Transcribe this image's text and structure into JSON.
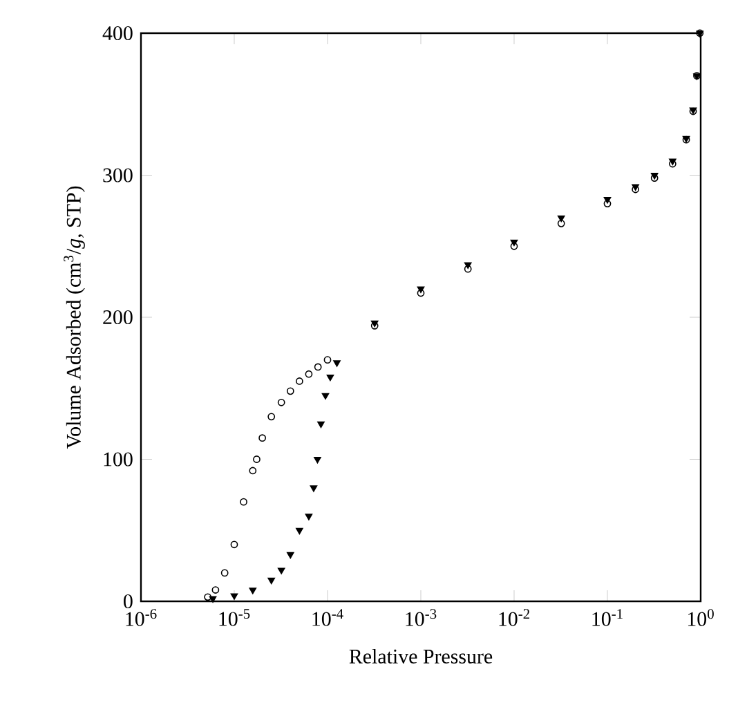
{
  "chart_data": {
    "type": "scatter",
    "xlabel": "Relative Pressure",
    "ylabel": "Volume Adsorbed (cm$^{3}$/*g*, STP)",
    "log": "x",
    "xlim": [
      1e-06,
      1
    ],
    "ylim": [
      0,
      400
    ],
    "xticks": [
      {
        "value": 1e-06,
        "label": "10$^{-6}$"
      },
      {
        "value": 1e-05,
        "label": "10$^{-5}$"
      },
      {
        "value": 0.0001,
        "label": "10$^{-4}$"
      },
      {
        "value": 0.001,
        "label": "10$^{-3}$"
      },
      {
        "value": 0.01,
        "label": "10$^{-2}$"
      },
      {
        "value": 0.1,
        "label": "10$^{-1}$"
      },
      {
        "value": 1,
        "label": "10$^{0}$"
      }
    ],
    "yticks": [
      0,
      100,
      200,
      300,
      400
    ],
    "series": [
      {
        "color": "#000000",
        "marker": "circle",
        "x": [
          5.2e-06,
          6.3e-06,
          7.9e-06,
          1e-05,
          1.26e-05,
          1.58e-05,
          1.74e-05,
          2e-05,
          2.5e-05,
          3.2e-05,
          4e-05,
          5e-05,
          6.3e-05,
          7.9e-05,
          0.0001,
          0.00032,
          0.001,
          0.0032,
          0.01,
          0.032,
          0.1,
          0.2,
          0.32,
          0.5,
          0.7,
          0.83,
          0.91,
          0.98
        ],
        "values": [
          3,
          8,
          20,
          40,
          70,
          92,
          100,
          115,
          130,
          140,
          148,
          155,
          160,
          165,
          170,
          194,
          217,
          234,
          250,
          266,
          280,
          290,
          298,
          308,
          325,
          345,
          370,
          400
        ]
      },
      {
        "color": "#000000",
        "marker": "triangle",
        "x": [
          5.9e-06,
          1e-05,
          1.58e-05,
          2.5e-05,
          3.2e-05,
          4e-05,
          5e-05,
          6.3e-05,
          7.1e-05,
          7.8e-05,
          8.5e-05,
          9.5e-05,
          0.000107,
          0.000126,
          0.00032,
          0.001,
          0.0032,
          0.01,
          0.032,
          0.1,
          0.2,
          0.32,
          0.5,
          0.7,
          0.83,
          0.91,
          0.98
        ],
        "values": [
          2,
          4,
          8,
          15,
          22,
          33,
          50,
          60,
          80,
          100,
          125,
          145,
          158,
          168,
          196,
          220,
          237,
          253,
          270,
          283,
          292,
          300,
          310,
          326,
          346,
          370,
          400
        ]
      }
    ]
  }
}
